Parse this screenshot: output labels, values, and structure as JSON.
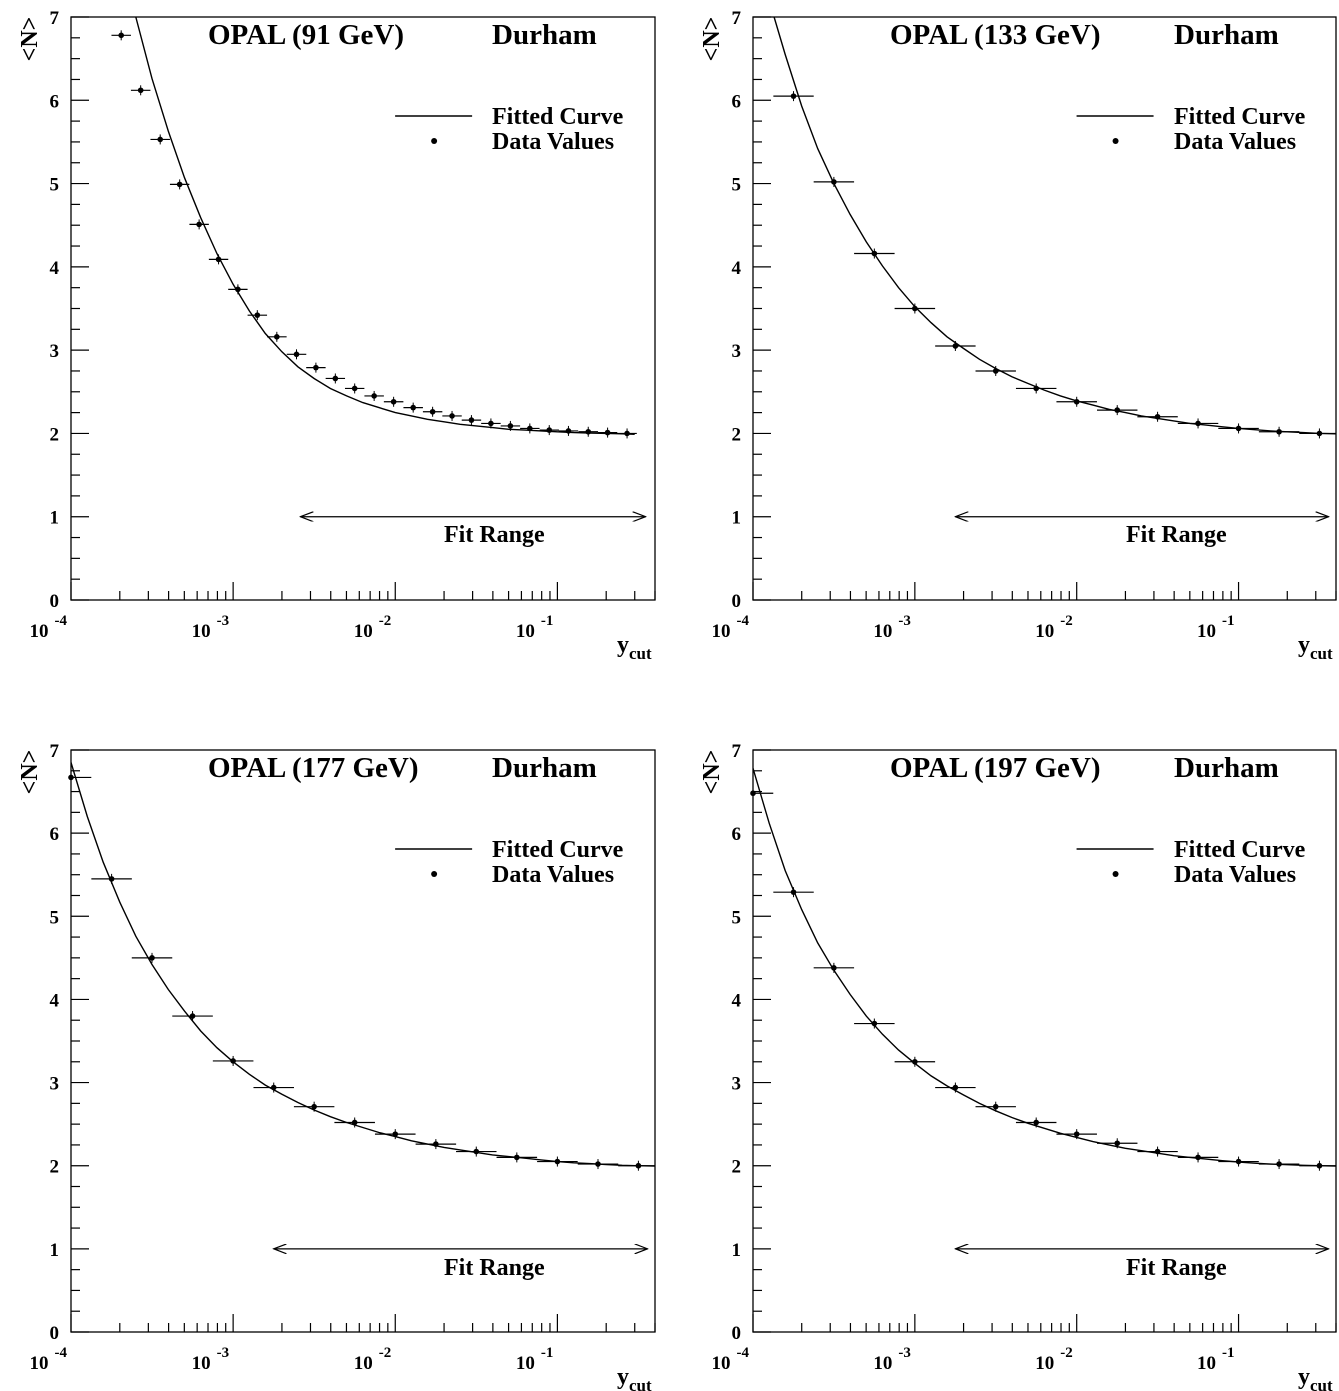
{
  "figure": {
    "ylabel": "<N>",
    "xlabel_main": "y",
    "xlabel_sub": "cut",
    "legend": {
      "curve": "Fitted Curve",
      "points": "Data Values"
    },
    "fit_range_label": "Fit Range"
  },
  "chart_data": [
    {
      "type": "scatter",
      "title": "OPAL (91 GeV)",
      "algorithm": "Durham",
      "x_scale": "log",
      "xlim": [
        0.0001,
        0.4
      ],
      "ylim": [
        0,
        7
      ],
      "x_ticks": [
        {
          "value": 0.0001,
          "base": "10",
          "exp": "-4"
        },
        {
          "value": 0.001,
          "base": "10",
          "exp": "-3"
        },
        {
          "value": 0.01,
          "base": "10",
          "exp": "-2"
        },
        {
          "value": 0.1,
          "base": "10",
          "exp": "-1"
        }
      ],
      "y_ticks": [
        0,
        1,
        2,
        3,
        4,
        5,
        6,
        7
      ],
      "legend_position": "top-right",
      "fit_range": [
        0.0026,
        0.35
      ],
      "series": [
        {
          "kind": "data",
          "x": [
            0.000204,
            0.000269,
            0.000355,
            0.000468,
            0.000617,
            0.000813,
            0.00107,
            0.00141,
            0.00186,
            0.00246,
            0.00324,
            0.00427,
            0.00562,
            0.00741,
            0.00977,
            0.0129,
            0.017,
            0.0224,
            0.0295,
            0.0389,
            0.0513,
            0.0676,
            0.0891,
            0.117,
            0.155,
            0.204,
            0.269
          ],
          "y": [
            6.78,
            6.12,
            5.53,
            4.99,
            4.51,
            4.09,
            3.73,
            3.42,
            3.16,
            2.95,
            2.79,
            2.66,
            2.54,
            2.45,
            2.38,
            2.31,
            2.26,
            2.21,
            2.16,
            2.12,
            2.09,
            2.06,
            2.04,
            2.03,
            2.02,
            2.01,
            2.0
          ]
        },
        {
          "kind": "fit",
          "x": [
            0.000251,
            0.000316,
            0.000398,
            0.000501,
            0.000631,
            0.000794,
            0.001,
            0.00126,
            0.00158,
            0.002,
            0.00251,
            0.00316,
            0.00398,
            0.00501,
            0.00631,
            0.00794,
            0.01,
            0.0126,
            0.0158,
            0.02,
            0.0251,
            0.0316,
            0.0398,
            0.0501,
            0.0631,
            0.0794,
            0.1,
            0.126,
            0.158,
            0.2,
            0.251,
            0.3
          ],
          "y": [
            7.0,
            6.26,
            5.63,
            5.07,
            4.59,
            4.16,
            3.79,
            3.47,
            3.2,
            2.98,
            2.8,
            2.66,
            2.54,
            2.45,
            2.37,
            2.31,
            2.25,
            2.21,
            2.17,
            2.14,
            2.11,
            2.09,
            2.07,
            2.05,
            2.04,
            2.03,
            2.02,
            2.01,
            2.005,
            2.0,
            1.995,
            1.99
          ]
        }
      ]
    },
    {
      "type": "scatter",
      "title": "OPAL (133 GeV)",
      "algorithm": "Durham",
      "x_scale": "log",
      "xlim": [
        0.0001,
        0.4
      ],
      "ylim": [
        0,
        7
      ],
      "x_ticks": [
        {
          "value": 0.0001,
          "base": "10",
          "exp": "-4"
        },
        {
          "value": 0.001,
          "base": "10",
          "exp": "-3"
        },
        {
          "value": 0.01,
          "base": "10",
          "exp": "-2"
        },
        {
          "value": 0.1,
          "base": "10",
          "exp": "-1"
        }
      ],
      "y_ticks": [
        0,
        1,
        2,
        3,
        4,
        5,
        6,
        7
      ],
      "legend_position": "top-right",
      "fit_range": [
        0.00178,
        0.36
      ],
      "series": [
        {
          "kind": "data",
          "x": [
            0.000178,
            0.000316,
            0.000562,
            0.001,
            0.00178,
            0.00316,
            0.00562,
            0.01,
            0.0178,
            0.0316,
            0.0562,
            0.1,
            0.178,
            0.316
          ],
          "y": [
            6.05,
            5.02,
            4.16,
            3.5,
            3.05,
            2.75,
            2.54,
            2.38,
            2.28,
            2.2,
            2.12,
            2.06,
            2.02,
            2.0
          ]
        },
        {
          "kind": "fit",
          "x": [
            0.000135,
            0.000158,
            0.0002,
            0.000251,
            0.000316,
            0.000398,
            0.000501,
            0.000631,
            0.000794,
            0.001,
            0.00126,
            0.00158,
            0.002,
            0.00251,
            0.00316,
            0.00398,
            0.00501,
            0.00631,
            0.00794,
            0.01,
            0.0126,
            0.0158,
            0.02,
            0.0251,
            0.0316,
            0.0398,
            0.0501,
            0.0631,
            0.0794,
            0.1,
            0.126,
            0.158,
            0.2,
            0.251,
            0.316,
            0.398
          ],
          "y": [
            7.0,
            6.55,
            5.93,
            5.42,
            5.0,
            4.63,
            4.3,
            4.01,
            3.75,
            3.52,
            3.33,
            3.16,
            3.02,
            2.89,
            2.78,
            2.68,
            2.6,
            2.52,
            2.45,
            2.39,
            2.34,
            2.29,
            2.25,
            2.21,
            2.18,
            2.15,
            2.12,
            2.1,
            2.08,
            2.06,
            2.045,
            2.03,
            2.02,
            2.01,
            2.0,
            1.995
          ]
        }
      ]
    },
    {
      "type": "scatter",
      "title": "OPAL (177 GeV)",
      "algorithm": "Durham",
      "x_scale": "log",
      "xlim": [
        0.0001,
        0.4
      ],
      "ylim": [
        0,
        7
      ],
      "x_ticks": [
        {
          "value": 0.0001,
          "base": "10",
          "exp": "-4"
        },
        {
          "value": 0.001,
          "base": "10",
          "exp": "-3"
        },
        {
          "value": 0.01,
          "base": "10",
          "exp": "-2"
        },
        {
          "value": 0.1,
          "base": "10",
          "exp": "-1"
        }
      ],
      "y_ticks": [
        0,
        1,
        2,
        3,
        4,
        5,
        6,
        7
      ],
      "legend_position": "top-right",
      "fit_range": [
        0.00178,
        0.36
      ],
      "series": [
        {
          "kind": "data",
          "x": [
            0.0001,
            0.000178,
            0.000316,
            0.000562,
            0.001,
            0.00178,
            0.00316,
            0.00562,
            0.01,
            0.0178,
            0.0316,
            0.0562,
            0.1,
            0.178,
            0.316
          ],
          "y": [
            6.67,
            5.45,
            4.5,
            3.8,
            3.26,
            2.94,
            2.71,
            2.52,
            2.38,
            2.26,
            2.17,
            2.1,
            2.05,
            2.02,
            2.0
          ]
        },
        {
          "kind": "fit",
          "x": [
            0.0001,
            0.000126,
            0.000158,
            0.0002,
            0.000251,
            0.000316,
            0.000398,
            0.000501,
            0.000631,
            0.000794,
            0.001,
            0.00126,
            0.00158,
            0.002,
            0.00251,
            0.00316,
            0.00398,
            0.00501,
            0.00631,
            0.00794,
            0.01,
            0.0126,
            0.0158,
            0.02,
            0.0251,
            0.0316,
            0.0398,
            0.0501,
            0.0631,
            0.0794,
            0.1,
            0.126,
            0.158,
            0.2,
            0.251,
            0.316,
            0.398
          ],
          "y": [
            6.85,
            6.2,
            5.65,
            5.17,
            4.76,
            4.42,
            4.12,
            3.86,
            3.62,
            3.42,
            3.25,
            3.1,
            2.97,
            2.86,
            2.76,
            2.67,
            2.59,
            2.52,
            2.46,
            2.4,
            2.35,
            2.3,
            2.26,
            2.22,
            2.19,
            2.16,
            2.13,
            2.11,
            2.09,
            2.07,
            2.05,
            2.035,
            2.025,
            2.015,
            2.005,
            2.0,
            1.995
          ]
        }
      ]
    },
    {
      "type": "scatter",
      "title": "OPAL (197 GeV)",
      "algorithm": "Durham",
      "x_scale": "log",
      "xlim": [
        0.0001,
        0.4
      ],
      "ylim": [
        0,
        7
      ],
      "x_ticks": [
        {
          "value": 0.0001,
          "base": "10",
          "exp": "-4"
        },
        {
          "value": 0.001,
          "base": "10",
          "exp": "-3"
        },
        {
          "value": 0.01,
          "base": "10",
          "exp": "-2"
        },
        {
          "value": 0.1,
          "base": "10",
          "exp": "-1"
        }
      ],
      "y_ticks": [
        0,
        1,
        2,
        3,
        4,
        5,
        6,
        7
      ],
      "legend_position": "top-right",
      "fit_range": [
        0.00178,
        0.36
      ],
      "series": [
        {
          "kind": "data",
          "x": [
            0.0001,
            0.000178,
            0.000316,
            0.000562,
            0.001,
            0.00178,
            0.00316,
            0.00562,
            0.01,
            0.0178,
            0.0316,
            0.0562,
            0.1,
            0.178,
            0.316
          ],
          "y": [
            6.48,
            5.29,
            4.38,
            3.71,
            3.25,
            2.94,
            2.71,
            2.52,
            2.38,
            2.27,
            2.17,
            2.1,
            2.05,
            2.02,
            2.0
          ]
        },
        {
          "kind": "fit",
          "x": [
            0.0001,
            0.000126,
            0.000158,
            0.0002,
            0.000251,
            0.000316,
            0.000398,
            0.000501,
            0.000631,
            0.000794,
            0.001,
            0.00126,
            0.00158,
            0.002,
            0.00251,
            0.00316,
            0.00398,
            0.00501,
            0.00631,
            0.00794,
            0.01,
            0.0126,
            0.0158,
            0.02,
            0.0251,
            0.0316,
            0.0398,
            0.0501,
            0.0631,
            0.0794,
            0.1,
            0.126,
            0.158,
            0.2,
            0.251,
            0.316,
            0.398
          ],
          "y": [
            6.78,
            6.12,
            5.55,
            5.08,
            4.68,
            4.35,
            4.06,
            3.8,
            3.58,
            3.39,
            3.23,
            3.08,
            2.96,
            2.85,
            2.75,
            2.66,
            2.58,
            2.51,
            2.45,
            2.39,
            2.34,
            2.29,
            2.25,
            2.21,
            2.18,
            2.15,
            2.12,
            2.1,
            2.08,
            2.06,
            2.045,
            2.03,
            2.02,
            2.012,
            2.005,
            2.0,
            1.995
          ]
        }
      ]
    }
  ]
}
